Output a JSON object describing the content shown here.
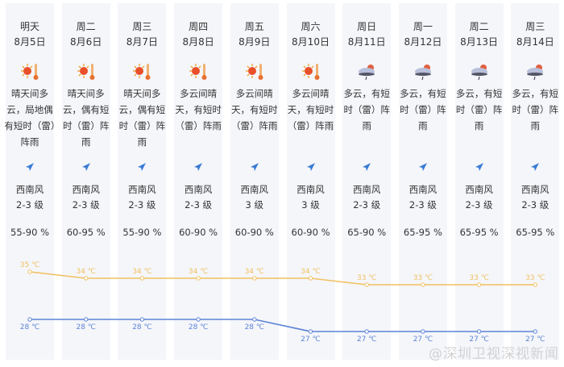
{
  "days": [
    {
      "day": "明天",
      "date": "8月5日",
      "icon": "sunny-hot-icon",
      "desc": "晴天间多云，局地偶有短时（雷）阵雨",
      "wind": "西南风",
      "level": "2-3 级",
      "humidity": "55-90 %",
      "high": "35 ℃",
      "low": "28 ℃"
    },
    {
      "day": "周二",
      "date": "8月6日",
      "icon": "sunny-hot-icon",
      "desc": "晴天间多云，偶有短时（雷）阵雨",
      "wind": "西南风",
      "level": "2-3 级",
      "humidity": "60-95 %",
      "high": "34 ℃",
      "low": "28 ℃"
    },
    {
      "day": "周三",
      "date": "8月7日",
      "icon": "sunny-hot-icon",
      "desc": "晴天间多云，偶有短时（雷）阵雨",
      "wind": "西南风",
      "level": "2-3 级",
      "humidity": "55-90 %",
      "high": "34 ℃",
      "low": "28 ℃"
    },
    {
      "day": "周四",
      "date": "8月8日",
      "icon": "sunny-hot-icon",
      "desc": "多云间晴天，有短时（雷）阵雨",
      "wind": "西南风",
      "level": "2-3 级",
      "humidity": "60-90 %",
      "high": "34 ℃",
      "low": "28 ℃"
    },
    {
      "day": "周五",
      "date": "8月9日",
      "icon": "sunny-hot-icon",
      "desc": "多云间晴天，有短时（雷）阵雨",
      "wind": "西南风",
      "level": "3 级",
      "humidity": "60-90 %",
      "high": "34 ℃",
      "low": "28 ℃"
    },
    {
      "day": "周六",
      "date": "8月10日",
      "icon": "sunny-hot-icon",
      "desc": "多云间晴天，有短时（雷）阵雨",
      "wind": "西南风",
      "level": "3 级",
      "humidity": "60-90 %",
      "high": "34 ℃",
      "low": "27 ℃"
    },
    {
      "day": "周日",
      "date": "8月11日",
      "icon": "cloudy-thunder-icon",
      "desc": "多云，有短时（雷）阵雨",
      "wind": "西南风",
      "level": "2-3 级",
      "humidity": "65-90 %",
      "high": "33 ℃",
      "low": "27 ℃"
    },
    {
      "day": "周一",
      "date": "8月12日",
      "icon": "cloudy-thunder-icon",
      "desc": "多云，有短时（雷）阵雨",
      "wind": "西南风",
      "level": "2-3 级",
      "humidity": "65-95 %",
      "high": "33 ℃",
      "low": "27 ℃"
    },
    {
      "day": "周二",
      "date": "8月13日",
      "icon": "cloudy-thunder-icon",
      "desc": "多云，有短时（雷）阵雨",
      "wind": "西南风",
      "level": "2-3 级",
      "humidity": "65-95 %",
      "high": "33 ℃",
      "low": "27 ℃"
    },
    {
      "day": "周三",
      "date": "8月14日",
      "icon": "cloudy-thunder-icon",
      "desc": "多云，有短时（雷）阵雨",
      "wind": "西南风",
      "level": "2-3 级",
      "humidity": "65-95 %",
      "high": "33 ℃",
      "low": "27 ℃"
    }
  ],
  "highs": [
    35,
    34,
    34,
    34,
    34,
    34,
    33,
    33,
    33,
    33
  ],
  "lows": [
    28,
    28,
    28,
    28,
    28,
    27,
    27,
    27,
    27,
    27
  ],
  "colors": {
    "high": "#f0c060",
    "low": "#5b84d6"
  },
  "watermark": "@深圳卫视深视新闻"
}
